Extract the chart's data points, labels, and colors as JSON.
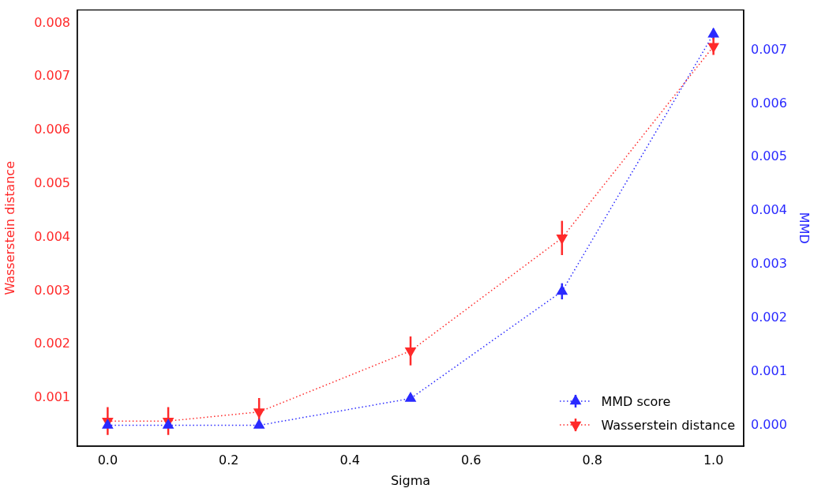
{
  "chart_data": {
    "type": "line",
    "xlabel": "Sigma",
    "ylabel": "Wasserstein distance",
    "y2label": "MMD",
    "x": [
      0.0,
      0.1,
      0.25,
      0.5,
      0.75,
      1.0
    ],
    "series": [
      {
        "name": "MMD score",
        "color": "#2a2aff",
        "axis": "y2",
        "marker": "triangle",
        "line_style": "dotted",
        "values": [
          0.0,
          0.0,
          0.0,
          0.0005,
          0.0025,
          0.0073
        ],
        "errors": [
          2e-05,
          2e-05,
          2e-05,
          3e-05,
          0.00015,
          0.0001
        ]
      },
      {
        "name": "Wasserstein distance",
        "color": "#ff2a2a",
        "axis": "y",
        "marker": "triangle-down",
        "line_style": "dotted",
        "values": [
          0.00057,
          0.00057,
          0.00074,
          0.00188,
          0.00399,
          0.00757
        ],
        "errors": [
          0.00026,
          0.00026,
          0.00026,
          0.00027,
          0.00032,
          0.00016
        ]
      }
    ],
    "xlim": [
      -0.05,
      1.05
    ],
    "xticks": [
      {
        "value": 0,
        "label": "0.0"
      },
      {
        "value": 0.2,
        "label": "0.2"
      },
      {
        "value": 0.4,
        "label": "0.4"
      },
      {
        "value": 0.6,
        "label": "0.6"
      },
      {
        "value": 0.8,
        "label": "0.8"
      },
      {
        "value": 1,
        "label": "1.0"
      }
    ],
    "ylim": [
      0.0001,
      0.00825
    ],
    "yticks": [
      0.001,
      0.002,
      0.003,
      0.004,
      0.005,
      0.006,
      0.007,
      0.008
    ],
    "y2lim": [
      -0.00039,
      0.00775
    ],
    "y2ticks": [
      {
        "value": 0,
        "label": "0.000"
      },
      0.001,
      0.002,
      0.003,
      0.004,
      0.005,
      0.006,
      0.007
    ],
    "legend": "bottom right",
    "grid": false
  }
}
